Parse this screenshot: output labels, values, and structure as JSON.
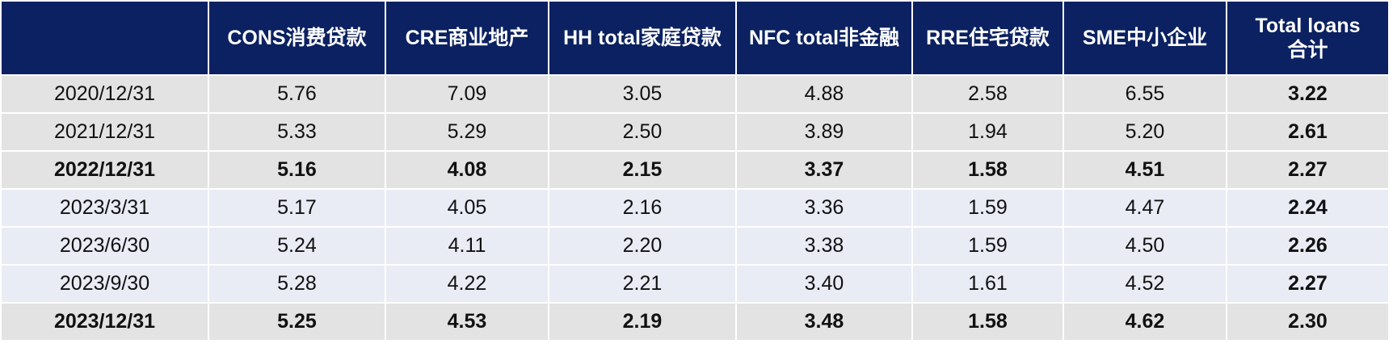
{
  "table": {
    "header": [
      "CONS消费贷款",
      "CRE商业地产",
      "HH total家庭贷款",
      "NFC total非金融",
      "RRE住宅贷款",
      "SME中小企业",
      "Total loans\n合计"
    ],
    "rows": [
      [
        "2020/12/31",
        "5.76",
        "7.09",
        "3.05",
        "4.88",
        "2.58",
        "6.55",
        "3.22"
      ],
      [
        "2021/12/31",
        "5.33",
        "5.29",
        "2.50",
        "3.89",
        "1.94",
        "5.20",
        "2.61"
      ],
      [
        "2022/12/31",
        "5.16",
        "4.08",
        "2.15",
        "3.37",
        "1.58",
        "4.51",
        "2.27"
      ],
      [
        "2023/3/31",
        "5.17",
        "4.05",
        "2.16",
        "3.36",
        "1.59",
        "4.47",
        "2.24"
      ],
      [
        "2023/6/30",
        "5.24",
        "4.11",
        "2.20",
        "3.38",
        "1.59",
        "4.50",
        "2.26"
      ],
      [
        "2023/9/30",
        "5.28",
        "4.22",
        "2.21",
        "3.40",
        "1.61",
        "4.52",
        "2.27"
      ],
      [
        "2023/12/31",
        "5.25",
        "4.53",
        "2.19",
        "3.48",
        "1.58",
        "4.62",
        "2.30"
      ]
    ]
  }
}
